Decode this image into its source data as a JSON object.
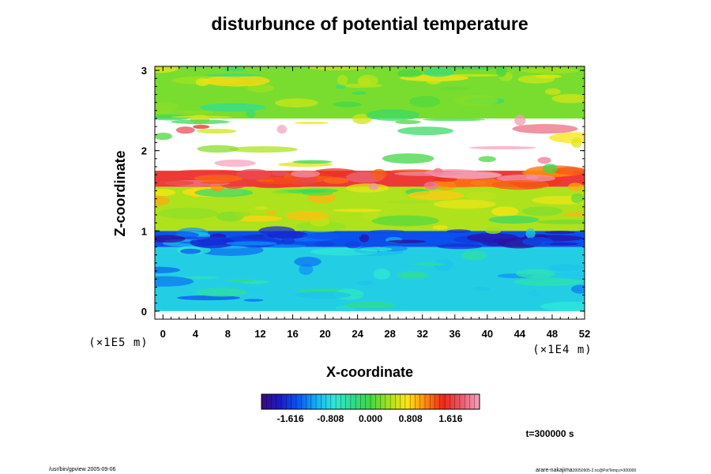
{
  "chart_data": {
    "type": "heatmap",
    "title": "disturbunce of potential temperature",
    "xlabel": "X-coordinate",
    "ylabel": "Z-coordinate",
    "x_unit": "(×1E4 m)",
    "y_unit": "(×1E5 m)",
    "xlim": [
      -1,
      52
    ],
    "ylim": [
      -0.1,
      3.05
    ],
    "x_ticks": [
      0,
      4,
      8,
      12,
      16,
      20,
      24,
      28,
      32,
      36,
      40,
      44,
      48,
      52
    ],
    "y_ticks": [
      0,
      1,
      2,
      3
    ],
    "colorbar": {
      "ticks": [
        "-1.616",
        "-0.808",
        "0.000",
        "0.808",
        "1.616"
      ],
      "tick_values": [
        -1.616,
        -0.808,
        0.0,
        0.808,
        1.616
      ],
      "range": [
        -2.2,
        2.2
      ]
    },
    "approx_layers": [
      {
        "z_range": [
          0.0,
          0.8
        ],
        "approx_value": -0.9
      },
      {
        "z_range": [
          0.8,
          1.0
        ],
        "approx_value": -1.5
      },
      {
        "z_range": [
          1.0,
          1.55
        ],
        "approx_value": 0.4
      },
      {
        "z_range": [
          1.55,
          1.75
        ],
        "approx_value": 1.6
      },
      {
        "z_range": [
          1.75,
          2.4
        ],
        "approx_value": "above colour range (white)"
      },
      {
        "z_range": [
          2.4,
          3.05
        ],
        "approx_value": 0.2
      }
    ],
    "time_label": "t=300000 s"
  },
  "footer": {
    "left": "/usr/bin/gpview 2005-09-06",
    "right": "arare-nakajima",
    "right_small": "20050905-2.nc@PotTemp,t=300000"
  },
  "colors": {
    "colormap": [
      "#3a0a7a",
      "#1a1ac8",
      "#0a55f0",
      "#13aff5",
      "#30e8d8",
      "#30dc8c",
      "#44d644",
      "#a6e21e",
      "#ffe612",
      "#ff8c0e",
      "#f02818",
      "#e85a6e",
      "#f4a4bc"
    ]
  }
}
